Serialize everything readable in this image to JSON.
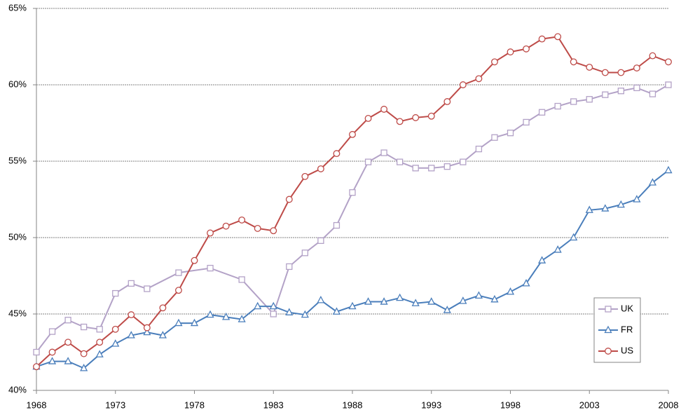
{
  "chart_data": {
    "type": "line",
    "xlim": [
      1968,
      2008
    ],
    "xticks": [
      1968,
      1973,
      1978,
      1983,
      1988,
      1993,
      1998,
      2003,
      2008
    ],
    "ylim": [
      40,
      65
    ],
    "yticks": [
      {
        "value": 40,
        "label": "40%"
      },
      {
        "value": 45,
        "label": "45%"
      },
      {
        "value": 50,
        "label": "50%"
      },
      {
        "value": 55,
        "label": "55%"
      },
      {
        "value": 60,
        "label": "60%"
      },
      {
        "value": 65,
        "label": "65%"
      }
    ],
    "grid": true,
    "legend": "lower right",
    "series": [
      {
        "name": "UK",
        "color": "#b3a2c7",
        "marker": "square",
        "x": [
          1968,
          1969,
          1970,
          1971,
          1972,
          1973,
          1974,
          1975,
          1977,
          1979,
          1981,
          1983,
          1984,
          1985,
          1986,
          1987,
          1988,
          1989,
          1990,
          1991,
          1992,
          1993,
          1994,
          1995,
          1996,
          1997,
          1998,
          1999,
          2000,
          2001,
          2002,
          2003,
          2004,
          2005,
          2006,
          2007,
          2008
        ],
        "values": [
          42.5,
          43.85,
          44.6,
          44.15,
          44.0,
          46.35,
          47.0,
          46.65,
          47.7,
          48.0,
          47.25,
          45.0,
          48.1,
          49.0,
          49.8,
          50.8,
          52.95,
          54.95,
          55.55,
          54.95,
          54.55,
          54.55,
          54.65,
          54.95,
          55.8,
          56.55,
          56.85,
          57.55,
          58.2,
          58.6,
          58.9,
          59.05,
          59.35,
          59.6,
          59.8,
          59.4,
          60.0
        ]
      },
      {
        "name": "FR",
        "color": "#4a7ebb",
        "marker": "triangle",
        "x": [
          1968,
          1969,
          1970,
          1971,
          1972,
          1973,
          1974,
          1975,
          1976,
          1977,
          1978,
          1979,
          1980,
          1981,
          1982,
          1983,
          1984,
          1985,
          1986,
          1987,
          1988,
          1989,
          1990,
          1991,
          1992,
          1993,
          1994,
          1995,
          1996,
          1997,
          1998,
          1999,
          2000,
          2001,
          2002,
          2003,
          2004,
          2005,
          2006,
          2007,
          2008
        ],
        "values": [
          41.55,
          41.9,
          41.9,
          41.45,
          42.35,
          43.05,
          43.6,
          43.8,
          43.6,
          44.4,
          44.4,
          44.95,
          44.8,
          44.65,
          45.5,
          45.5,
          45.1,
          44.95,
          45.9,
          45.15,
          45.5,
          45.8,
          45.8,
          46.05,
          45.7,
          45.8,
          45.25,
          45.85,
          46.2,
          45.95,
          46.45,
          47.0,
          48.5,
          49.2,
          50.0,
          51.8,
          51.9,
          52.15,
          52.5,
          53.6,
          54.4
        ]
      },
      {
        "name": "US",
        "color": "#be4b48",
        "marker": "circle",
        "x": [
          1968,
          1969,
          1970,
          1971,
          1972,
          1973,
          1974,
          1975,
          1976,
          1977,
          1978,
          1979,
          1980,
          1981,
          1982,
          1983,
          1984,
          1985,
          1986,
          1987,
          1988,
          1989,
          1990,
          1991,
          1992,
          1993,
          1994,
          1995,
          1996,
          1997,
          1998,
          1999,
          2000,
          2001,
          2002,
          2003,
          2004,
          2005,
          2006,
          2007,
          2008
        ],
        "values": [
          41.55,
          42.5,
          43.15,
          42.4,
          43.15,
          44.0,
          44.95,
          44.1,
          45.4,
          46.55,
          48.5,
          50.3,
          50.75,
          51.15,
          50.6,
          50.45,
          52.5,
          54.0,
          54.5,
          55.5,
          56.75,
          57.8,
          58.4,
          57.6,
          57.85,
          57.95,
          58.9,
          60.0,
          60.4,
          61.5,
          62.15,
          62.35,
          63.0,
          63.15,
          61.5,
          61.15,
          60.8,
          60.8,
          61.1,
          61.9,
          61.5
        ]
      }
    ]
  }
}
